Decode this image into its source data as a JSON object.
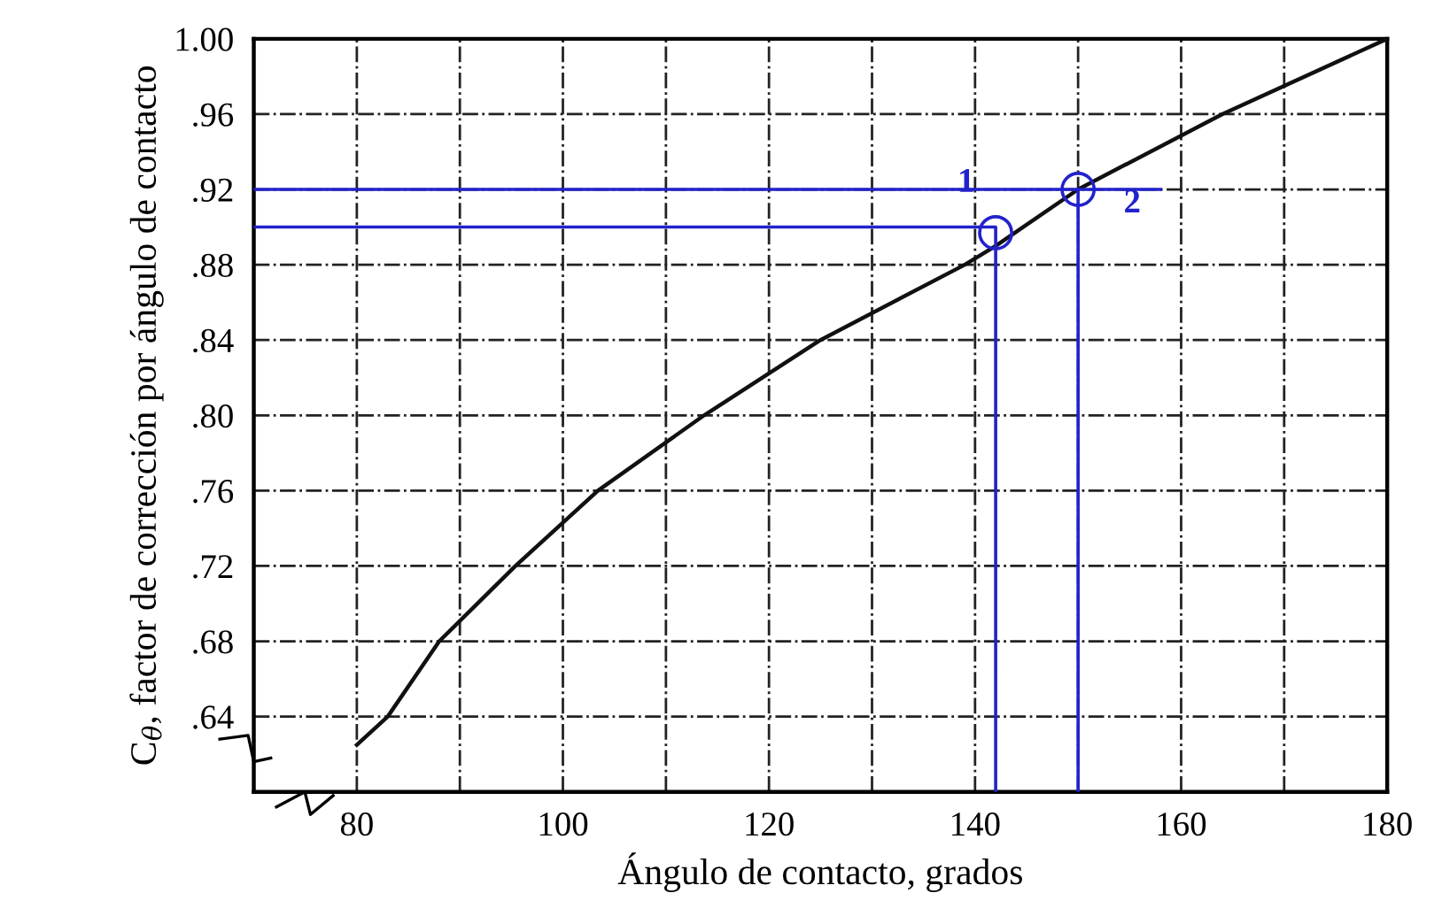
{
  "chart_data": {
    "type": "line",
    "xlabel": "Ángulo de contacto, grados",
    "ylabel": "C$_{θ}$, factor de corrección por ángulo de contacto",
    "xlim": [
      70,
      180
    ],
    "ylim": [
      0.6,
      1.0
    ],
    "xticks": [
      80,
      {
        "value": 90,
        "label": null
      },
      100,
      {
        "value": 110,
        "label": null
      },
      120,
      {
        "value": 130,
        "label": null
      },
      140,
      {
        "value": 150,
        "label": null
      },
      160,
      {
        "value": 170,
        "label": null
      },
      180
    ],
    "yticks": [
      {
        "value": 0.64,
        "label": ".64"
      },
      {
        "value": 0.68,
        "label": ".68"
      },
      {
        "value": 0.72,
        "label": ".72"
      },
      {
        "value": 0.76,
        "label": ".76"
      },
      {
        "value": 0.8,
        "label": ".80"
      },
      {
        "value": 0.84,
        "label": ".84"
      },
      {
        "value": 0.88,
        "label": ".88"
      },
      {
        "value": 0.92,
        "label": ".92"
      },
      {
        "value": 0.96,
        "label": ".96"
      },
      {
        "value": 1.0,
        "label": "1.00"
      }
    ],
    "grid": true,
    "series": [
      {
        "color": "#111111",
        "marker": "none",
        "x": [
          80,
          83,
          88,
          95.4,
          103.4,
          113.7,
          125,
          139,
          142,
          150,
          164,
          180
        ],
        "values": [
          0.625,
          0.64,
          0.68,
          0.72,
          0.76,
          0.8,
          0.84,
          0.88,
          0.89,
          0.92,
          0.96,
          1.0
        ]
      },
      {
        "type": "line",
        "color": "#2222cc",
        "marker": "none",
        "x": [
          70,
          142,
          142
        ],
        "values": [
          0.9,
          0.9,
          0.6
        ]
      },
      {
        "type": "line",
        "color": "#2222cc",
        "marker": "none",
        "x": [
          70,
          158
        ],
        "values": [
          0.92,
          0.92
        ]
      },
      {
        "type": "line",
        "color": "#2222cc",
        "marker": "none",
        "x": [
          150,
          150
        ],
        "values": [
          0.92,
          0.6
        ]
      },
      {
        "type": "scatter",
        "color": "#2222cc",
        "marker": "circle",
        "x": [
          142,
          150
        ],
        "values": [
          0.897,
          0.92
        ]
      }
    ],
    "annotations": [
      "1",
      "2"
    ]
  }
}
